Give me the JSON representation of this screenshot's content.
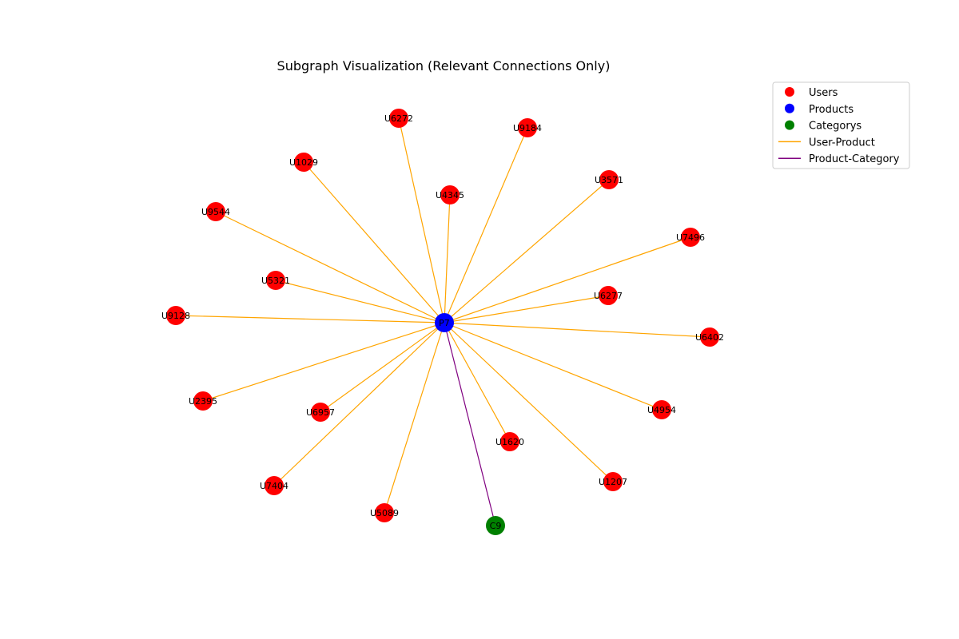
{
  "title": "Subgraph Visualization (Relevant Connections Only)",
  "colors": {
    "user": "#ff0000",
    "product": "#0000ff",
    "category": "#008000",
    "user_product_edge": "#ffa500",
    "product_category_edge": "#800080"
  },
  "legend": {
    "items": [
      {
        "label": "Users",
        "kind": "marker",
        "color": "#ff0000"
      },
      {
        "label": "Products",
        "kind": "marker",
        "color": "#0000ff"
      },
      {
        "label": "Categorys",
        "kind": "marker",
        "color": "#008000"
      },
      {
        "label": "User-Product",
        "kind": "line",
        "color": "#ffa500"
      },
      {
        "label": "Product-Category",
        "kind": "line",
        "color": "#800080"
      }
    ]
  },
  "graph": {
    "product": {
      "id": "P7",
      "label": "P7"
    },
    "category": {
      "id": "C9",
      "label": "C9"
    },
    "users": [
      {
        "id": "U6272",
        "label": "U6272"
      },
      {
        "id": "U9184",
        "label": "U9184"
      },
      {
        "id": "U1029",
        "label": "U1029"
      },
      {
        "id": "U4345",
        "label": "U4345"
      },
      {
        "id": "U3571",
        "label": "U3571"
      },
      {
        "id": "U9544",
        "label": "U9544"
      },
      {
        "id": "U7496",
        "label": "U7496"
      },
      {
        "id": "U5321",
        "label": "U5321"
      },
      {
        "id": "U6277",
        "label": "U6277"
      },
      {
        "id": "U9128",
        "label": "U9128"
      },
      {
        "id": "U6402",
        "label": "U6402"
      },
      {
        "id": "U2395",
        "label": "U2395"
      },
      {
        "id": "U6957",
        "label": "U6957"
      },
      {
        "id": "U4954",
        "label": "U4954"
      },
      {
        "id": "U1620",
        "label": "U1620"
      },
      {
        "id": "U7404",
        "label": "U7404"
      },
      {
        "id": "U1207",
        "label": "U1207"
      },
      {
        "id": "U5089",
        "label": "U5089"
      }
    ],
    "edges": [
      {
        "from": "U6272",
        "to": "P7",
        "type": "user_product"
      },
      {
        "from": "U9184",
        "to": "P7",
        "type": "user_product"
      },
      {
        "from": "U1029",
        "to": "P7",
        "type": "user_product"
      },
      {
        "from": "U4345",
        "to": "P7",
        "type": "user_product"
      },
      {
        "from": "U3571",
        "to": "P7",
        "type": "user_product"
      },
      {
        "from": "U9544",
        "to": "P7",
        "type": "user_product"
      },
      {
        "from": "U7496",
        "to": "P7",
        "type": "user_product"
      },
      {
        "from": "U5321",
        "to": "P7",
        "type": "user_product"
      },
      {
        "from": "U6277",
        "to": "P7",
        "type": "user_product"
      },
      {
        "from": "U9128",
        "to": "P7",
        "type": "user_product"
      },
      {
        "from": "U6402",
        "to": "P7",
        "type": "user_product"
      },
      {
        "from": "U2395",
        "to": "P7",
        "type": "user_product"
      },
      {
        "from": "U6957",
        "to": "P7",
        "type": "user_product"
      },
      {
        "from": "U4954",
        "to": "P7",
        "type": "user_product"
      },
      {
        "from": "U1620",
        "to": "P7",
        "type": "user_product"
      },
      {
        "from": "U7404",
        "to": "P7",
        "type": "user_product"
      },
      {
        "from": "U1207",
        "to": "P7",
        "type": "user_product"
      },
      {
        "from": "U5089",
        "to": "P7",
        "type": "user_product"
      },
      {
        "from": "P7",
        "to": "C9",
        "type": "product_category"
      }
    ]
  }
}
